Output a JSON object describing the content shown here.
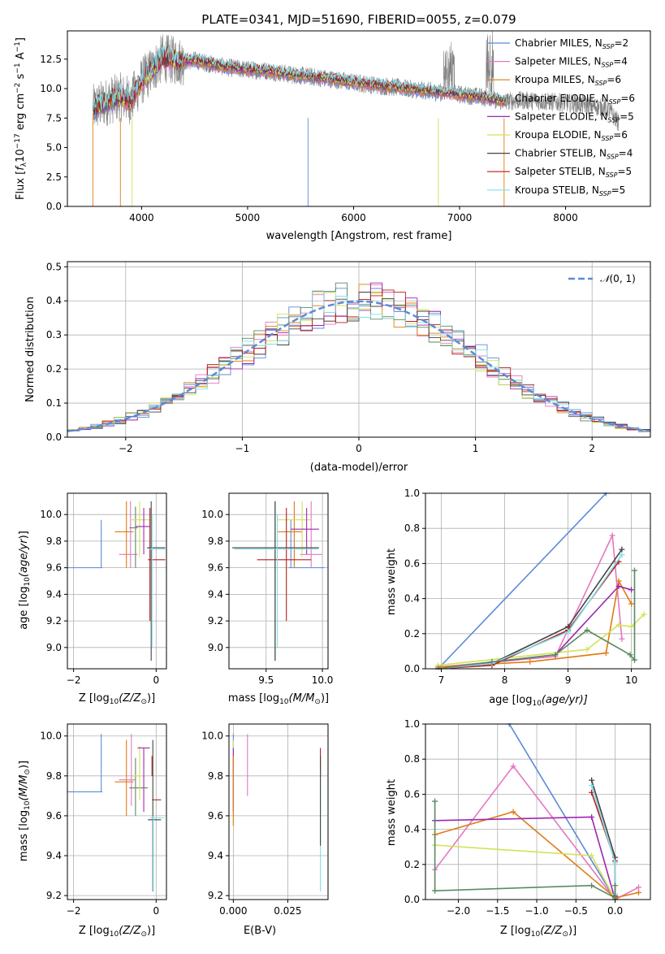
{
  "figure_title": "PLATE=0341, MJD=51690, FIBERID=0055, z=0.079",
  "colors": {
    "chabrier_miles": "#5b8bd8",
    "salpeter_miles": "#e377c2",
    "kroupa_miles": "#e07b14",
    "chabrier_elodie": "#8e24aa",
    "salpeter_elodie": "#9d27b0",
    "kroupa_elodie": "#d4e157",
    "chabrier_stelib": "#444444",
    "salpeter_stelib": "#b71c1c",
    "kroupa_stelib": "#80deea",
    "green_series": "#5a8a62",
    "data_gray": "#808080",
    "gauss": "#5b8bd8"
  },
  "chart_data": [
    {
      "id": "spectrum",
      "type": "line",
      "title": "PLATE=0341, MJD=51690, FIBERID=0055, z=0.079",
      "xlabel": "wavelength [Angstrom, rest frame]",
      "ylabel": "Flux [f_λ 10^-17 erg cm^-2 s^-1 A^-1]",
      "xlim": [
        3300,
        8800
      ],
      "ylim": [
        0,
        14.9
      ],
      "xticks": [
        "4000",
        "5000",
        "6000",
        "7000",
        "8000"
      ],
      "yticks": [
        "0.0",
        "2.5",
        "5.0",
        "7.5",
        "10.0",
        "12.5"
      ],
      "legend": [
        {
          "label": "Chabrier MILES, N_SSP=2",
          "main": "Chabrier MILES, N",
          "sub": "SSP",
          "tail": "=2",
          "color": "#5b8bd8"
        },
        {
          "label": "Salpeter MILES, N_SSP=4",
          "main": "Salpeter MILES, N",
          "sub": "SSP",
          "tail": "=4",
          "color": "#e377c2"
        },
        {
          "label": "Kroupa MILES, N_SSP=6",
          "main": "Kroupa MILES, N",
          "sub": "SSP",
          "tail": "=6",
          "color": "#e07b14"
        },
        {
          "label": "Chabrier ELODIE, N_SSP=6",
          "main": "Chabrier ELODIE, N",
          "sub": "SSP",
          "tail": "=6",
          "color": "#5a8a62"
        },
        {
          "label": "Salpeter ELODIE, N_SSP=5",
          "main": "Salpeter ELODIE, N",
          "sub": "SSP",
          "tail": "=5",
          "color": "#9d27b0"
        },
        {
          "label": "Kroupa ELODIE, N_SSP=6",
          "main": "Kroupa ELODIE, N",
          "sub": "SSP",
          "tail": "=6",
          "color": "#d4e157"
        },
        {
          "label": "Chabrier STELIB, N_SSP=4",
          "main": "Chabrier STELIB, N",
          "sub": "SSP",
          "tail": "=4",
          "color": "#444444"
        },
        {
          "label": "Salpeter STELIB, N_SSP=5",
          "main": "Salpeter STELIB, N",
          "sub": "SSP",
          "tail": "=5",
          "color": "#b71c1c"
        },
        {
          "label": "Kroupa STELIB, N_SSP=5",
          "main": "Kroupa STELIB, N",
          "sub": "SSP",
          "tail": "=5",
          "color": "#80deea"
        }
      ],
      "data_anchor": [
        [
          3540,
          8.3
        ],
        [
          3700,
          9.0
        ],
        [
          3800,
          9.3
        ],
        [
          3900,
          9.0
        ],
        [
          4000,
          10.6
        ],
        [
          4100,
          11.6
        ],
        [
          4200,
          12.6
        ],
        [
          4300,
          12.4
        ],
        [
          4400,
          12.3
        ],
        [
          4500,
          12.4
        ],
        [
          4600,
          12.2
        ],
        [
          4800,
          11.8
        ],
        [
          5000,
          11.6
        ],
        [
          5200,
          11.5
        ],
        [
          5400,
          11.2
        ],
        [
          5600,
          11.0
        ],
        [
          5800,
          10.8
        ],
        [
          6000,
          10.5
        ],
        [
          6200,
          10.3
        ],
        [
          6400,
          10.1
        ],
        [
          6600,
          9.9
        ],
        [
          6800,
          9.7
        ],
        [
          7000,
          9.5
        ],
        [
          7200,
          9.3
        ],
        [
          7400,
          8.9
        ],
        [
          7600,
          9.0
        ],
        [
          7800,
          8.9
        ],
        [
          8000,
          8.8
        ],
        [
          8200,
          8.6
        ],
        [
          8400,
          8.3
        ],
        [
          8500,
          7.1
        ]
      ],
      "model_end": 7440
    },
    {
      "id": "residuals",
      "type": "bar",
      "xlabel": "(data-model)/error",
      "ylabel": "Normed distribution",
      "xlim": [
        -2.5,
        2.5
      ],
      "ylim": [
        0,
        0.515
      ],
      "xticks": [
        "−2",
        "−1",
        "0",
        "1",
        "2"
      ],
      "yticks": [
        "0.0",
        "0.1",
        "0.2",
        "0.3",
        "0.4",
        "0.5"
      ],
      "legend": "N(0, 1)",
      "legend_main": "𝒩",
      "legend_tail": "(0, 1)",
      "bin_width": 0.1
    },
    {
      "id": "age_vs_Z",
      "type": "scatter",
      "xlabel_main": "Z [log",
      "xlabel_sub": "10",
      "xlabel_tail": "(Z/Z",
      "ylabel": "age [log10(age/yr)]",
      "xlim": [
        -2.15,
        0.25
      ],
      "ylim": [
        8.84,
        10.16
      ],
      "xticks": [
        "−2",
        "0"
      ],
      "yticks": [
        "9.0",
        "9.2",
        "9.4",
        "9.6",
        "9.8",
        "10.0"
      ],
      "points": [
        {
          "x": -1.33,
          "y": 9.6,
          "x0": -2.3,
          "x1": -1.3,
          "y0": 9.6,
          "y1": 9.96,
          "color": "#5b8bd8"
        },
        {
          "x": -0.72,
          "y": 9.87,
          "x0": -1.0,
          "x1": -0.55,
          "y0": 9.6,
          "y1": 10.1,
          "color": "#e07b14"
        },
        {
          "x": -0.62,
          "y": 9.7,
          "x0": -0.9,
          "x1": -0.45,
          "y0": 9.6,
          "y1": 10.1,
          "color": "#e377c2"
        },
        {
          "x": -0.5,
          "y": 9.9,
          "x0": -0.65,
          "x1": -0.45,
          "y0": 9.6,
          "y1": 10.06,
          "color": "#5a8a62"
        },
        {
          "x": -0.4,
          "y": 9.96,
          "x0": -0.6,
          "x1": -0.1,
          "y0": 9.68,
          "y1": 10.1,
          "color": "#d4e157"
        },
        {
          "x": -0.3,
          "y": 9.91,
          "x0": -0.5,
          "x1": -0.15,
          "y0": 9.7,
          "y1": 10.05,
          "color": "#9d27b0"
        },
        {
          "x": -0.15,
          "y": 9.66,
          "x0": -0.2,
          "x1": 0.22,
          "y0": 9.2,
          "y1": 10.05,
          "color": "#b71c1c"
        },
        {
          "x": -0.12,
          "y": 9.75,
          "x0": -0.22,
          "x1": 0.22,
          "y0": 8.9,
          "y1": 10.1,
          "color": "#444444"
        },
        {
          "x": -0.1,
          "y": 9.74,
          "x0": -0.2,
          "x1": 0.22,
          "y0": 9.0,
          "y1": 10.0,
          "color": "#80deea"
        }
      ]
    },
    {
      "id": "age_vs_mass",
      "type": "scatter",
      "xlabel_main": "mass [log",
      "xlabel_sub": "10",
      "xlabel_tail": "(M/M",
      "ylabel": "",
      "xlim": [
        9.17,
        10.05
      ],
      "ylim": [
        8.84,
        10.16
      ],
      "xticks": [
        "9.5",
        "10.0"
      ],
      "yticks": [
        "9.0",
        "9.2",
        "9.4",
        "9.6",
        "9.8",
        "10.0"
      ],
      "points": [
        {
          "x": 9.72,
          "y": 9.6,
          "x0": 9.7,
          "x1": 10.02,
          "y0": 9.6,
          "y1": 9.96,
          "color": "#5b8bd8"
        },
        {
          "x": 9.75,
          "y": 9.87,
          "x0": 9.6,
          "x1": 9.82,
          "y0": 9.6,
          "y1": 10.1,
          "color": "#e07b14"
        },
        {
          "x": 9.9,
          "y": 9.7,
          "x0": 9.8,
          "x1": 10.0,
          "y0": 9.6,
          "y1": 10.1,
          "color": "#e377c2"
        },
        {
          "x": 9.58,
          "y": 9.75,
          "x0": 9.2,
          "x1": 9.97,
          "y0": 8.9,
          "y1": 10.1,
          "color": "#5a8a62"
        },
        {
          "x": 9.82,
          "y": 9.96,
          "x0": 9.6,
          "x1": 9.9,
          "y0": 9.68,
          "y1": 10.1,
          "color": "#d4e157"
        },
        {
          "x": 9.86,
          "y": 9.89,
          "x0": 9.72,
          "x1": 9.97,
          "y0": 9.7,
          "y1": 10.05,
          "color": "#9d27b0"
        },
        {
          "x": 9.68,
          "y": 9.66,
          "x0": 9.42,
          "x1": 9.9,
          "y0": 9.2,
          "y1": 10.05,
          "color": "#b71c1c"
        },
        {
          "x": 9.58,
          "y": 9.75,
          "x0": 9.2,
          "x1": 9.97,
          "y0": 8.9,
          "y1": 10.1,
          "color": "#444444"
        },
        {
          "x": 9.6,
          "y": 9.74,
          "x0": 9.22,
          "x1": 9.96,
          "y0": 9.0,
          "y1": 10.0,
          "color": "#80deea"
        }
      ]
    },
    {
      "id": "mass_weight_vs_age",
      "type": "line",
      "xlabel_main": "age  [log",
      "xlabel_sub": "10",
      "xlabel_tail": "(age/yr)]",
      "ylabel": "mass weight",
      "xlim": [
        6.75,
        10.3
      ],
      "ylim": [
        0,
        1.0
      ],
      "xticks": [
        "7",
        "8",
        "9",
        "10"
      ],
      "yticks": [
        "0.0",
        "0.2",
        "0.4",
        "0.6",
        "0.8",
        "1.0"
      ],
      "series": [
        {
          "color": "#5b8bd8",
          "x": [
            6.95,
            9.6
          ],
          "y": [
            0.0,
            1.0
          ]
        },
        {
          "color": "#e377c2",
          "x": [
            6.95,
            8.8,
            9.7,
            9.85
          ],
          "y": [
            0.01,
            0.07,
            0.76,
            0.17
          ]
        },
        {
          "color": "#e07b14",
          "x": [
            6.95,
            8.4,
            9.6,
            9.8,
            10.0
          ],
          "y": [
            0.01,
            0.04,
            0.09,
            0.5,
            0.37
          ]
        },
        {
          "color": "#9d27b0",
          "x": [
            6.95,
            8.8,
            9.8,
            10.0
          ],
          "y": [
            0.0,
            0.08,
            0.47,
            0.45
          ]
        },
        {
          "color": "#d4e157",
          "x": [
            6.95,
            9.3,
            9.8,
            10.0,
            10.2
          ],
          "y": [
            0.02,
            0.11,
            0.25,
            0.24,
            0.31
          ]
        },
        {
          "color": "#444444",
          "x": [
            6.95,
            7.8,
            9.0,
            9.85
          ],
          "y": [
            0.0,
            0.03,
            0.24,
            0.68
          ]
        },
        {
          "color": "#b71c1c",
          "x": [
            6.95,
            7.8,
            9.0,
            9.8
          ],
          "y": [
            0.0,
            0.02,
            0.22,
            0.61
          ]
        },
        {
          "color": "#80deea",
          "x": [
            6.95,
            7.8,
            9.0,
            9.85
          ],
          "y": [
            0.0,
            0.03,
            0.21,
            0.65
          ]
        },
        {
          "color": "#5a8a62",
          "x": [
            6.95,
            7.8,
            8.8,
            9.3,
            9.98,
            10.05,
            10.05
          ],
          "y": [
            0.0,
            0.04,
            0.08,
            0.22,
            0.08,
            0.05,
            0.56
          ]
        }
      ]
    },
    {
      "id": "mass_vs_Z",
      "type": "scatter",
      "xlabel_main": "Z [log",
      "xlabel_sub": "10",
      "xlabel_tail": "(Z/Z",
      "ylabel": "mass [log10(M/M_sun)]",
      "xlim": [
        -2.15,
        0.25
      ],
      "ylim": [
        9.18,
        10.06
      ],
      "xticks": [
        "−2",
        "0"
      ],
      "yticks": [
        "9.2",
        "9.4",
        "9.6",
        "9.8",
        "10.0"
      ],
      "points": [
        {
          "x": -1.33,
          "y": 9.72,
          "x0": -2.3,
          "x1": -1.3,
          "y0": 9.72,
          "y1": 10.01,
          "color": "#5b8bd8"
        },
        {
          "x": -0.72,
          "y": 9.77,
          "x0": -1.0,
          "x1": -0.55,
          "y0": 9.6,
          "y1": 9.98,
          "color": "#e07b14"
        },
        {
          "x": -0.6,
          "y": 9.78,
          "x0": -0.9,
          "x1": -0.5,
          "y0": 9.65,
          "y1": 10.01,
          "color": "#e377c2"
        },
        {
          "x": -0.5,
          "y": 9.74,
          "x0": -0.65,
          "x1": -0.2,
          "y0": 9.6,
          "y1": 9.89,
          "color": "#5a8a62"
        },
        {
          "x": -0.4,
          "y": 9.8,
          "x0": -0.55,
          "x1": -0.35,
          "y0": 9.68,
          "y1": 9.95,
          "color": "#d4e157"
        },
        {
          "x": -0.3,
          "y": 9.94,
          "x0": -0.45,
          "x1": -0.15,
          "y0": 9.62,
          "y1": 9.94,
          "color": "#9d27b0"
        },
        {
          "x": -0.1,
          "y": 9.68,
          "x0": -0.1,
          "x1": 0.12,
          "y0": 9.8,
          "y1": 9.9,
          "color": "#b71c1c"
        },
        {
          "x": -0.08,
          "y": 9.58,
          "x0": -0.2,
          "x1": 0.12,
          "y0": 9.22,
          "y1": 9.98,
          "color": "#444444"
        },
        {
          "x": -0.07,
          "y": 9.59,
          "x0": -0.15,
          "x1": 0.2,
          "y0": 9.22,
          "y1": 9.6,
          "color": "#80deea"
        }
      ]
    },
    {
      "id": "mass_vs_ebv",
      "type": "scatter",
      "xlabel": "E(B-V)",
      "ylabel": "",
      "xlim": [
        -0.002,
        0.0435
      ],
      "ylim": [
        9.18,
        10.06
      ],
      "xticks": [
        "0.000",
        "0.025"
      ],
      "yticks": [
        "9.2",
        "9.4",
        "9.6",
        "9.8",
        "10.0"
      ],
      "vlines": [
        {
          "x": 0.0,
          "y0": 9.6,
          "y1": 10.01,
          "color": "#5b8bd8"
        },
        {
          "x": 0.0,
          "y0": 9.55,
          "y1": 9.98,
          "color": "#d4e157"
        },
        {
          "x": 0.0,
          "y0": 9.62,
          "y1": 9.94,
          "color": "#9d27b0"
        },
        {
          "x": 0.0,
          "y0": 9.55,
          "y1": 9.9,
          "color": "#e07b14"
        },
        {
          "x": 0.0065,
          "y0": 9.7,
          "y1": 10.01,
          "color": "#e377c2"
        },
        {
          "x": 0.04,
          "y0": 9.8,
          "y1": 9.94,
          "color": "#b71c1c"
        },
        {
          "x": 0.04,
          "y0": 9.22,
          "y1": 9.82,
          "color": "#80deea"
        },
        {
          "x": 0.04,
          "y0": 9.45,
          "y1": 9.9,
          "color": "#444444"
        }
      ]
    },
    {
      "id": "mass_weight_vs_Z",
      "type": "line",
      "xlabel_main": "Z [log",
      "xlabel_sub": "10",
      "xlabel_tail": "(Z/Z",
      "ylabel": "mass weight",
      "xlim": [
        -2.42,
        0.45
      ],
      "ylim": [
        0,
        1.0
      ],
      "xticks": [
        "−2.0",
        "−1.5",
        "−1.0",
        "−0.5",
        "0.0"
      ],
      "yticks": [
        "0.0",
        "0.2",
        "0.4",
        "0.6",
        "0.8",
        "1.0"
      ],
      "series": [
        {
          "color": "#5b8bd8",
          "x": [
            -1.35,
            0.0
          ],
          "y": [
            1.0,
            0.0
          ]
        },
        {
          "color": "#e377c2",
          "x": [
            -2.3,
            -1.3,
            0.0,
            0.3
          ],
          "y": [
            0.17,
            0.76,
            0.0,
            0.07
          ]
        },
        {
          "color": "#e07b14",
          "x": [
            -2.3,
            -1.3,
            0.0,
            0.3
          ],
          "y": [
            0.37,
            0.5,
            0.01,
            0.04
          ]
        },
        {
          "color": "#9d27b0",
          "x": [
            -2.3,
            -0.3,
            0.0
          ],
          "y": [
            0.45,
            0.47,
            0.0
          ]
        },
        {
          "color": "#d4e157",
          "x": [
            -2.3,
            -0.3,
            0.0
          ],
          "y": [
            0.31,
            0.25,
            0.0
          ]
        },
        {
          "color": "#444444",
          "x": [
            -0.3,
            0.0,
            0.0
          ],
          "y": [
            0.68,
            0.24,
            0.03
          ]
        },
        {
          "color": "#b71c1c",
          "x": [
            -0.3,
            0.0,
            0.0
          ],
          "y": [
            0.61,
            0.22,
            0.02
          ]
        },
        {
          "color": "#80deea",
          "x": [
            -0.3,
            0.0,
            0.0
          ],
          "y": [
            0.65,
            0.21,
            0.03
          ]
        },
        {
          "color": "#5a8a62",
          "x": [
            -2.3,
            -2.3,
            -0.3,
            0.0,
            0.0
          ],
          "y": [
            0.56,
            0.05,
            0.08,
            0.01,
            0.08
          ]
        }
      ]
    }
  ]
}
